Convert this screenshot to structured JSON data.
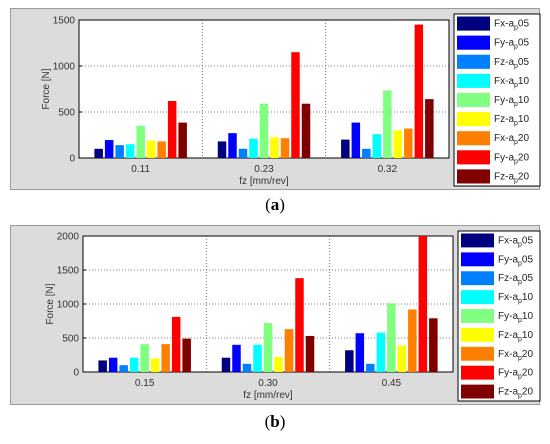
{
  "chart_data": [
    {
      "type": "bar",
      "panel_label": "a",
      "xlabel": "fz [mm/rev]",
      "ylabel": "Force [N]",
      "ylim": [
        0,
        1500
      ],
      "yticks": [
        0,
        500,
        1000,
        1500
      ],
      "grid": true,
      "legend_position": "right",
      "categories": [
        "0.11",
        "0.23",
        "0.32"
      ],
      "series": [
        {
          "name": "Fx-ap05",
          "base": "Fx-a",
          "sub": "p",
          "suffix": "05",
          "color": "#00007f",
          "values": [
            100,
            180,
            200
          ]
        },
        {
          "name": "Fy-ap05",
          "base": "Fy-a",
          "sub": "p",
          "suffix": "05",
          "color": "#0000ff",
          "values": [
            195,
            270,
            385
          ]
        },
        {
          "name": "Fz-ap05",
          "base": "Fz-a",
          "sub": "p",
          "suffix": "05",
          "color": "#0080ff",
          "values": [
            140,
            100,
            100
          ]
        },
        {
          "name": "Fx-ap10",
          "base": "Fx-a",
          "sub": "p",
          "suffix": "10",
          "color": "#00ffff",
          "values": [
            150,
            210,
            260
          ]
        },
        {
          "name": "Fy-ap10",
          "base": "Fy-a",
          "sub": "p",
          "suffix": "10",
          "color": "#80ff80",
          "values": [
            350,
            590,
            735
          ]
        },
        {
          "name": "Fz-ap10",
          "base": "Fz-a",
          "sub": "p",
          "suffix": "10",
          "color": "#ffff00",
          "values": [
            190,
            225,
            300
          ]
        },
        {
          "name": "Fx-ap20",
          "base": "Fx-a",
          "sub": "p",
          "suffix": "20",
          "color": "#ff8000",
          "values": [
            180,
            215,
            320
          ]
        },
        {
          "name": "Fy-ap20",
          "base": "Fy-a",
          "sub": "p",
          "suffix": "20",
          "color": "#ff0000",
          "values": [
            620,
            1150,
            1450
          ]
        },
        {
          "name": "Fz-ap20",
          "base": "Fz-a",
          "sub": "p",
          "suffix": "20",
          "color": "#800000",
          "values": [
            385,
            590,
            640
          ]
        }
      ]
    },
    {
      "type": "bar",
      "panel_label": "b",
      "xlabel": "fz [mm/rev]",
      "ylabel": "Force [N]",
      "ylim": [
        0,
        2000
      ],
      "yticks": [
        0,
        500,
        1000,
        1500,
        2000
      ],
      "grid": true,
      "legend_position": "right",
      "categories": [
        "0.15",
        "0.30",
        "0.45"
      ],
      "series": [
        {
          "name": "Fx-ap05",
          "base": "Fx-a",
          "sub": "p",
          "suffix": "05",
          "color": "#00007f",
          "values": [
            170,
            210,
            320
          ]
        },
        {
          "name": "Fy-ap05",
          "base": "Fy-a",
          "sub": "p",
          "suffix": "05",
          "color": "#0000ff",
          "values": [
            210,
            400,
            570
          ]
        },
        {
          "name": "Fz-ap05",
          "base": "Fz-a",
          "sub": "p",
          "suffix": "05",
          "color": "#0080ff",
          "values": [
            100,
            120,
            120
          ]
        },
        {
          "name": "Fx-ap10",
          "base": "Fx-a",
          "sub": "p",
          "suffix": "10",
          "color": "#00ffff",
          "values": [
            210,
            400,
            580
          ]
        },
        {
          "name": "Fy-ap10",
          "base": "Fy-a",
          "sub": "p",
          "suffix": "10",
          "color": "#80ff80",
          "values": [
            410,
            720,
            1010
          ]
        },
        {
          "name": "Fz-ap10",
          "base": "Fz-a",
          "sub": "p",
          "suffix": "10",
          "color": "#ffff00",
          "values": [
            200,
            220,
            390
          ]
        },
        {
          "name": "Fx-ap20",
          "base": "Fx-a",
          "sub": "p",
          "suffix": "20",
          "color": "#ff8000",
          "values": [
            410,
            630,
            920
          ]
        },
        {
          "name": "Fy-ap20",
          "base": "Fy-a",
          "sub": "p",
          "suffix": "20",
          "color": "#ff0000",
          "values": [
            810,
            1380,
            2000
          ]
        },
        {
          "name": "Fz-ap20",
          "base": "Fz-a",
          "sub": "p",
          "suffix": "20",
          "color": "#800000",
          "values": [
            490,
            530,
            790
          ]
        }
      ]
    }
  ],
  "captions": {
    "a": "a",
    "b": "b"
  }
}
